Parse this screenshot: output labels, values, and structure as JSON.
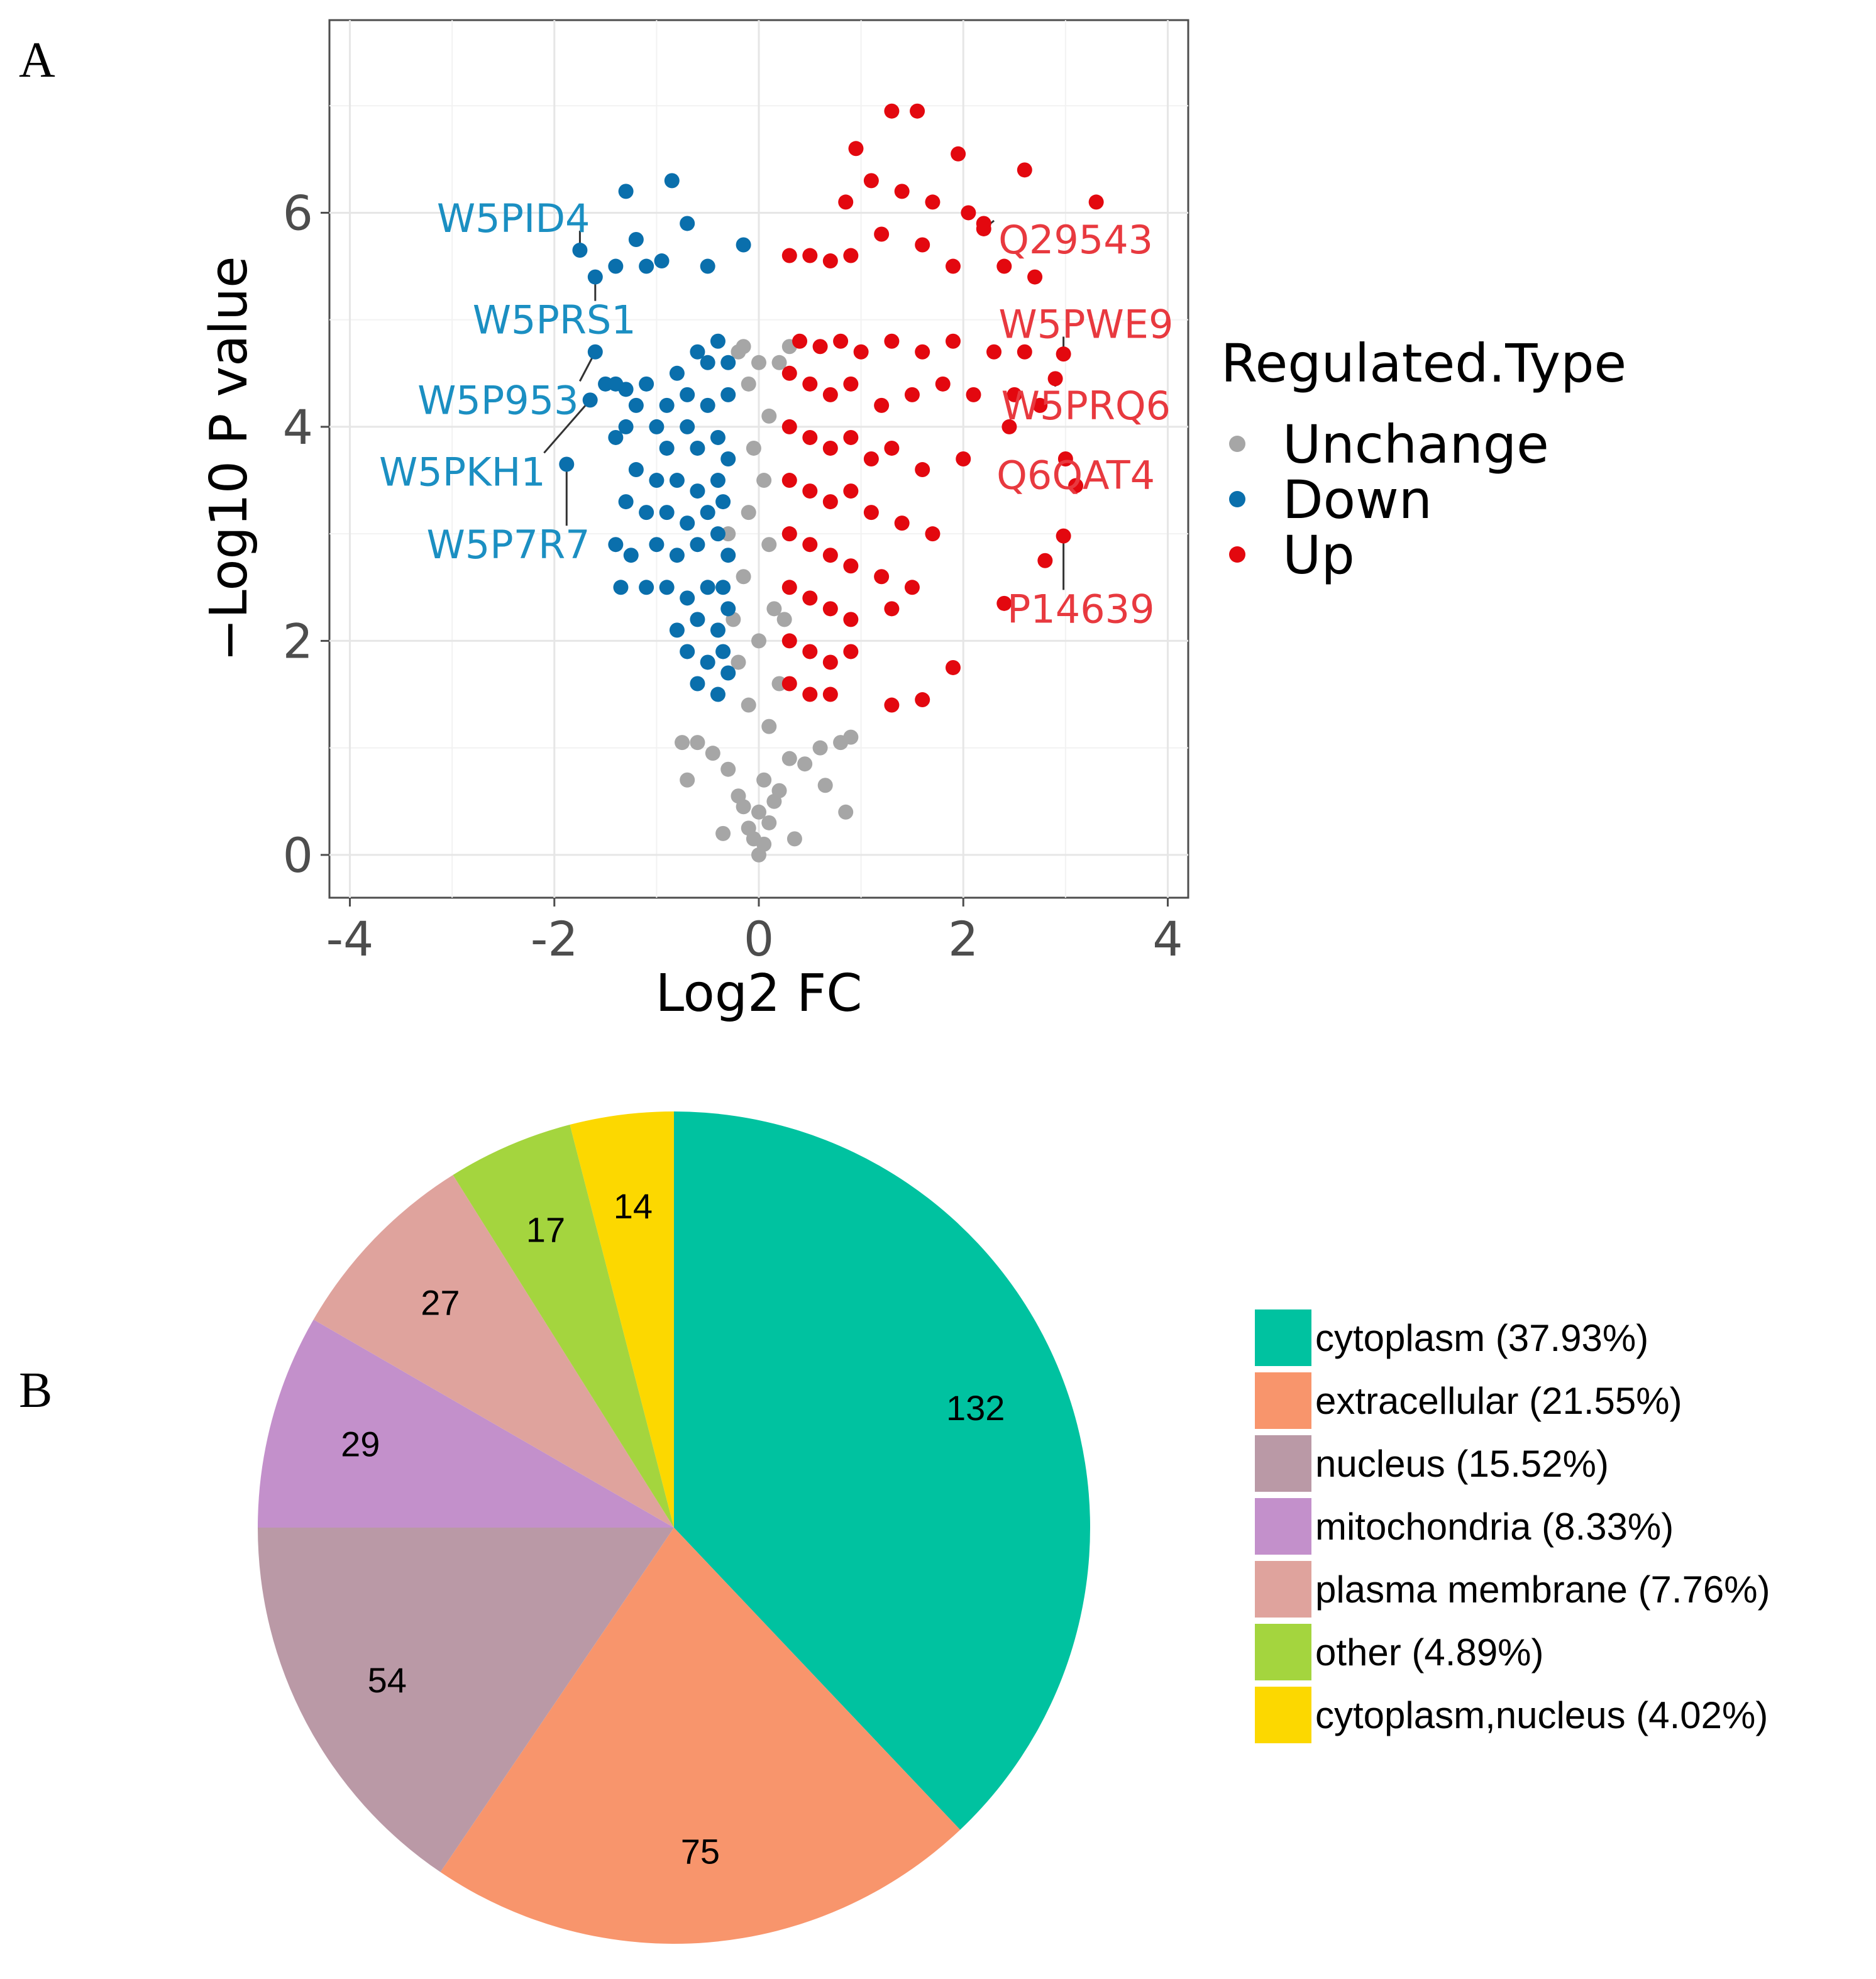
{
  "panels": {
    "a_label": "A",
    "b_label": "B"
  },
  "chart_data": [
    {
      "type": "scatter",
      "subtype": "volcano",
      "xlabel": "Log2 FC",
      "ylabel": "−Log10 P value",
      "xlim": [
        -4.2,
        4.2
      ],
      "ylim": [
        -0.4,
        7.8
      ],
      "xticks": [
        -4,
        -2,
        0,
        2,
        4
      ],
      "xtick_labels": [
        "-4",
        "-2",
        "0",
        "2",
        "4"
      ],
      "yticks": [
        0,
        2,
        4,
        6
      ],
      "ytick_labels": [
        "0",
        "2",
        "4",
        "6"
      ],
      "grid": true,
      "legend": {
        "title": "Regulated.Type",
        "position": "right",
        "entries": [
          {
            "name": "Unchange",
            "color": "#a6a6a6"
          },
          {
            "name": "Down",
            "color": "#0a6fac"
          },
          {
            "name": "Up",
            "color": "#e3080f"
          }
        ]
      },
      "label_colors": {
        "Down": "#1b8fc2",
        "Up": "#e8393f"
      },
      "annotations": [
        {
          "text": "W5PID4",
          "group": "Down",
          "point": [
            -1.75,
            5.65
          ],
          "text_pos": [
            -2.4,
            5.95
          ],
          "anchor": "middle"
        },
        {
          "text": "W5PRS1",
          "group": "Down",
          "point": [
            -1.6,
            5.4
          ],
          "text_pos": [
            -2.0,
            5.0
          ],
          "anchor": "middle"
        },
        {
          "text": "W5P953",
          "group": "Down",
          "point": [
            -1.6,
            4.7
          ],
          "text_pos": [
            -2.55,
            4.25
          ],
          "anchor": "middle"
        },
        {
          "text": "W5PKH1",
          "group": "Down",
          "point": [
            -1.65,
            4.25
          ],
          "text_pos": [
            -2.9,
            3.58
          ],
          "anchor": "middle"
        },
        {
          "text": "W5P7R7",
          "group": "Down",
          "point": [
            -1.88,
            3.65
          ],
          "text_pos": [
            -2.45,
            2.9
          ],
          "anchor": "middle"
        },
        {
          "text": "Q29543",
          "group": "Up",
          "point": [
            2.2,
            5.85
          ],
          "text_pos": [
            3.1,
            5.75
          ],
          "anchor": "middle"
        },
        {
          "text": "W5PWE9",
          "group": "Up",
          "point": [
            2.98,
            4.68
          ],
          "text_pos": [
            3.2,
            4.96
          ],
          "anchor": "middle"
        },
        {
          "text": "W5PRQ6",
          "group": "Up",
          "point": [
            2.9,
            4.45
          ],
          "text_pos": [
            3.2,
            4.2
          ],
          "anchor": "middle"
        },
        {
          "text": "Q6QAT4",
          "group": "Up",
          "point": [
            3.0,
            3.7
          ],
          "text_pos": [
            3.1,
            3.55
          ],
          "anchor": "middle"
        },
        {
          "text": "P14639",
          "group": "Up",
          "point": [
            2.98,
            2.98
          ],
          "text_pos": [
            3.15,
            2.3
          ],
          "anchor": "middle"
        }
      ],
      "series": [
        {
          "name": "Unchange",
          "points": [
            [
              0,
              0.0
            ],
            [
              0.05,
              0.1
            ],
            [
              -0.05,
              0.15
            ],
            [
              0.1,
              0.3
            ],
            [
              -0.1,
              0.25
            ],
            [
              0.0,
              0.4
            ],
            [
              0.15,
              0.5
            ],
            [
              -0.15,
              0.45
            ],
            [
              0.2,
              0.6
            ],
            [
              -0.2,
              0.55
            ],
            [
              0.05,
              0.7
            ],
            [
              -0.3,
              0.8
            ],
            [
              0.3,
              0.9
            ],
            [
              0.45,
              0.85
            ],
            [
              -0.45,
              0.95
            ],
            [
              0.6,
              1.0
            ],
            [
              -0.6,
              1.05
            ],
            [
              0.8,
              1.05
            ],
            [
              -0.7,
              0.7
            ],
            [
              0.9,
              1.1
            ],
            [
              0.85,
              0.4
            ],
            [
              -0.35,
              0.2
            ],
            [
              0.35,
              0.15
            ],
            [
              -0.75,
              1.05
            ],
            [
              0.65,
              0.65
            ],
            [
              0.1,
              1.2
            ],
            [
              -0.1,
              1.4
            ],
            [
              0.2,
              1.6
            ],
            [
              -0.2,
              1.8
            ],
            [
              0.0,
              2.0
            ],
            [
              0.15,
              2.3
            ],
            [
              -0.15,
              2.6
            ],
            [
              0.1,
              2.9
            ],
            [
              -0.1,
              3.2
            ],
            [
              0.05,
              3.5
            ],
            [
              -0.05,
              3.8
            ],
            [
              0.1,
              4.1
            ],
            [
              -0.1,
              4.4
            ],
            [
              0.2,
              4.6
            ],
            [
              -0.2,
              4.7
            ],
            [
              -0.15,
              4.75
            ],
            [
              0.3,
              4.75
            ],
            [
              0.0,
              4.6
            ],
            [
              -0.3,
              3.0
            ],
            [
              0.3,
              3.0
            ],
            [
              -0.25,
              2.2
            ],
            [
              0.25,
              2.2
            ]
          ]
        },
        {
          "name": "Down",
          "points": [
            [
              -1.75,
              5.65
            ],
            [
              -1.6,
              5.4
            ],
            [
              -1.6,
              4.7
            ],
            [
              -1.65,
              4.25
            ],
            [
              -1.88,
              3.65
            ],
            [
              -1.3,
              6.2
            ],
            [
              -0.85,
              6.3
            ],
            [
              -1.2,
              5.75
            ],
            [
              -0.7,
              5.9
            ],
            [
              -0.5,
              5.5
            ],
            [
              -1.4,
              5.5
            ],
            [
              -1.1,
              5.5
            ],
            [
              -0.95,
              5.55
            ],
            [
              -0.15,
              5.7
            ],
            [
              -1.5,
              4.4
            ],
            [
              -1.4,
              4.4
            ],
            [
              -1.3,
              4.35
            ],
            [
              -1.1,
              4.4
            ],
            [
              -1.2,
              4.2
            ],
            [
              -1.3,
              4.0
            ],
            [
              -0.8,
              4.5
            ],
            [
              -0.6,
              4.7
            ],
            [
              -0.4,
              4.8
            ],
            [
              -0.5,
              4.6
            ],
            [
              -0.3,
              4.6
            ],
            [
              -0.7,
              4.3
            ],
            [
              -0.9,
              4.2
            ],
            [
              -1.0,
              4.0
            ],
            [
              -1.4,
              3.9
            ],
            [
              -0.7,
              4.0
            ],
            [
              -0.5,
              4.2
            ],
            [
              -0.3,
              4.3
            ],
            [
              -0.9,
              3.8
            ],
            [
              -0.6,
              3.8
            ],
            [
              -0.4,
              3.9
            ],
            [
              -1.2,
              3.6
            ],
            [
              -1.0,
              3.5
            ],
            [
              -0.8,
              3.5
            ],
            [
              -0.6,
              3.4
            ],
            [
              -0.4,
              3.5
            ],
            [
              -0.3,
              3.7
            ],
            [
              -1.3,
              3.3
            ],
            [
              -1.1,
              3.2
            ],
            [
              -0.9,
              3.2
            ],
            [
              -0.7,
              3.1
            ],
            [
              -0.5,
              3.2
            ],
            [
              -0.35,
              3.3
            ],
            [
              -1.4,
              2.9
            ],
            [
              -1.25,
              2.8
            ],
            [
              -1.0,
              2.9
            ],
            [
              -0.8,
              2.8
            ],
            [
              -0.6,
              2.9
            ],
            [
              -0.4,
              3.0
            ],
            [
              -0.3,
              2.8
            ],
            [
              -1.35,
              2.5
            ],
            [
              -1.1,
              2.5
            ],
            [
              -0.9,
              2.5
            ],
            [
              -0.7,
              2.4
            ],
            [
              -0.5,
              2.5
            ],
            [
              -0.35,
              2.5
            ],
            [
              -0.8,
              2.1
            ],
            [
              -0.6,
              2.2
            ],
            [
              -0.4,
              2.1
            ],
            [
              -0.3,
              2.3
            ],
            [
              -0.7,
              1.9
            ],
            [
              -0.5,
              1.8
            ],
            [
              -0.35,
              1.9
            ],
            [
              -0.6,
              1.6
            ],
            [
              -0.4,
              1.5
            ],
            [
              -0.3,
              1.7
            ]
          ]
        },
        {
          "name": "Up",
          "points": [
            [
              1.3,
              6.95
            ],
            [
              1.55,
              6.95
            ],
            [
              0.95,
              6.6
            ],
            [
              1.95,
              6.55
            ],
            [
              2.6,
              6.4
            ],
            [
              1.1,
              6.3
            ],
            [
              0.85,
              6.1
            ],
            [
              1.4,
              6.2
            ],
            [
              1.7,
              6.1
            ],
            [
              2.2,
              5.9
            ],
            [
              2.05,
              6.0
            ],
            [
              3.3,
              6.1
            ],
            [
              0.3,
              5.6
            ],
            [
              0.5,
              5.6
            ],
            [
              0.7,
              5.55
            ],
            [
              0.9,
              5.6
            ],
            [
              1.2,
              5.8
            ],
            [
              1.6,
              5.7
            ],
            [
              1.9,
              5.5
            ],
            [
              2.4,
              5.5
            ],
            [
              2.7,
              5.4
            ],
            [
              2.2,
              5.85
            ],
            [
              0.4,
              4.8
            ],
            [
              0.6,
              4.75
            ],
            [
              0.8,
              4.8
            ],
            [
              1.0,
              4.7
            ],
            [
              1.3,
              4.8
            ],
            [
              1.6,
              4.7
            ],
            [
              1.9,
              4.8
            ],
            [
              2.3,
              4.7
            ],
            [
              2.6,
              4.7
            ],
            [
              2.98,
              4.68
            ],
            [
              2.9,
              4.45
            ],
            [
              0.3,
              4.5
            ],
            [
              0.5,
              4.4
            ],
            [
              0.7,
              4.3
            ],
            [
              0.9,
              4.4
            ],
            [
              1.2,
              4.2
            ],
            [
              1.5,
              4.3
            ],
            [
              1.8,
              4.4
            ],
            [
              2.1,
              4.3
            ],
            [
              2.5,
              4.3
            ],
            [
              2.75,
              4.2
            ],
            [
              2.45,
              4.0
            ],
            [
              3.0,
              3.7
            ],
            [
              3.1,
              3.45
            ],
            [
              0.3,
              4.0
            ],
            [
              0.5,
              3.9
            ],
            [
              0.7,
              3.8
            ],
            [
              0.9,
              3.9
            ],
            [
              1.1,
              3.7
            ],
            [
              1.3,
              3.8
            ],
            [
              1.6,
              3.6
            ],
            [
              2.0,
              3.7
            ],
            [
              0.3,
              3.5
            ],
            [
              0.5,
              3.4
            ],
            [
              0.7,
              3.3
            ],
            [
              0.9,
              3.4
            ],
            [
              1.1,
              3.2
            ],
            [
              1.4,
              3.1
            ],
            [
              1.7,
              3.0
            ],
            [
              2.98,
              2.98
            ],
            [
              2.8,
              2.75
            ],
            [
              0.3,
              3.0
            ],
            [
              0.5,
              2.9
            ],
            [
              0.7,
              2.8
            ],
            [
              0.9,
              2.7
            ],
            [
              1.2,
              2.6
            ],
            [
              1.5,
              2.5
            ],
            [
              0.3,
              2.5
            ],
            [
              0.5,
              2.4
            ],
            [
              0.7,
              2.3
            ],
            [
              0.9,
              2.2
            ],
            [
              1.3,
              2.3
            ],
            [
              2.4,
              2.35
            ],
            [
              0.3,
              2.0
            ],
            [
              0.5,
              1.9
            ],
            [
              0.7,
              1.8
            ],
            [
              0.9,
              1.9
            ],
            [
              1.9,
              1.75
            ],
            [
              0.3,
              1.6
            ],
            [
              0.5,
              1.5
            ],
            [
              0.7,
              1.5
            ],
            [
              1.3,
              1.4
            ],
            [
              1.6,
              1.45
            ]
          ]
        }
      ]
    },
    {
      "type": "pie",
      "values": [
        132,
        75,
        54,
        29,
        27,
        17,
        14
      ],
      "labels": [
        "132",
        "75",
        "54",
        "29",
        "27",
        "17",
        "14"
      ],
      "categories": [
        "cytoplasm",
        "extracellular",
        "nucleus",
        "mitochondria",
        "plasma membrane",
        "other",
        "cytoplasm,nucleus"
      ],
      "colors": [
        "#00c2a0",
        "#f8956c",
        "#ba99a6",
        "#c390cb",
        "#dfa39d",
        "#a4d53e",
        "#fcd800"
      ],
      "legend_entries": [
        "cytoplasm (37.93%)",
        "extracellular (21.55%)",
        "nucleus (15.52%)",
        "mitochondria (8.33%)",
        "plasma membrane (7.76%)",
        "other (4.89%)",
        "cytoplasm,nucleus (4.02%)"
      ],
      "legend_position": "right",
      "start": "top",
      "direction": "clockwise"
    }
  ]
}
